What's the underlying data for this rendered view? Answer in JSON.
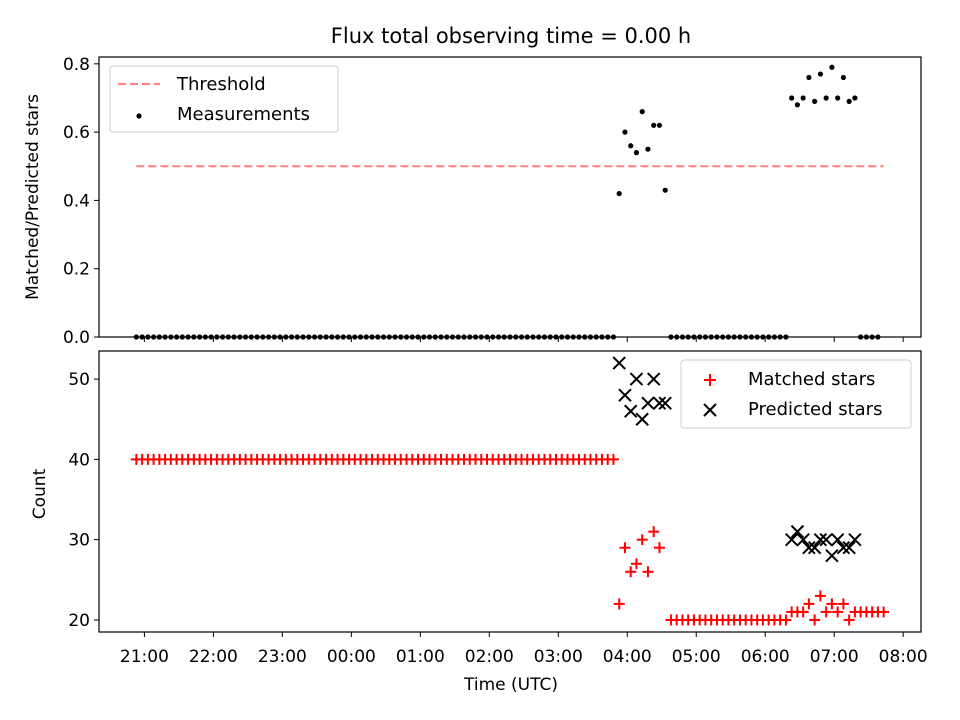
{
  "figure": {
    "title": "Flux total observing time = 0.00 h",
    "xlabel": "Time (UTC)",
    "xticks": [
      "21:00",
      "22:00",
      "23:00",
      "00:00",
      "01:00",
      "02:00",
      "03:00",
      "04:00",
      "05:00",
      "06:00",
      "07:00",
      "08:00"
    ]
  },
  "colors": {
    "threshold": "#ff7f7f",
    "measurement": "#000000",
    "matched": "#ff0000",
    "predicted": "#000000"
  },
  "chart_data": [
    {
      "type": "scatter",
      "ylabel": "Matched/Predicted stars",
      "ylim": [
        0,
        0.82
      ],
      "yticks": [
        "0.0",
        "0.2",
        "0.4",
        "0.6",
        "0.8"
      ],
      "legend": {
        "placement": "upper-left",
        "entries": [
          "Threshold",
          "Measurements"
        ]
      },
      "threshold": {
        "name": "Threshold",
        "value": 0.5,
        "x_start": "20:53",
        "x_end": "07:43"
      },
      "series": [
        {
          "name": "Measurements",
          "marker": "dot",
          "zero_runs": [
            {
              "start": "20:53",
              "end": "03:48",
              "step_min": 5
            },
            {
              "start": "04:38",
              "end": "06:18",
              "step_min": 5
            },
            {
              "start": "07:23",
              "end": "07:38",
              "step_min": 5
            }
          ],
          "points": [
            [
              "03:53",
              0.42
            ],
            [
              "03:58",
              0.6
            ],
            [
              "04:03",
              0.56
            ],
            [
              "04:08",
              0.54
            ],
            [
              "04:13",
              0.66
            ],
            [
              "04:18",
              0.55
            ],
            [
              "04:23",
              0.62
            ],
            [
              "04:28",
              0.62
            ],
            [
              "04:33",
              0.43
            ],
            [
              "06:23",
              0.7
            ],
            [
              "06:28",
              0.68
            ],
            [
              "06:33",
              0.7
            ],
            [
              "06:38",
              0.76
            ],
            [
              "06:43",
              0.69
            ],
            [
              "06:48",
              0.77
            ],
            [
              "06:53",
              0.7
            ],
            [
              "06:58",
              0.79
            ],
            [
              "07:03",
              0.7
            ],
            [
              "07:08",
              0.76
            ],
            [
              "07:13",
              0.69
            ],
            [
              "07:18",
              0.7
            ]
          ]
        }
      ]
    },
    {
      "type": "scatter",
      "ylabel": "Count",
      "ylim": [
        18.5,
        53.5
      ],
      "yticks": [
        "20",
        "30",
        "40",
        "50"
      ],
      "legend": {
        "placement": "upper-right",
        "entries": [
          "Matched stars",
          "Predicted stars"
        ]
      },
      "series": [
        {
          "name": "Matched stars",
          "marker": "plus",
          "constant_runs": [
            {
              "start": "20:53",
              "end": "03:48",
              "step_min": 5,
              "value": 40
            },
            {
              "start": "04:38",
              "end": "06:18",
              "step_min": 5,
              "value": 20
            },
            {
              "start": "07:23",
              "end": "07:43",
              "step_min": 5,
              "value": 21
            }
          ],
          "points": [
            [
              "03:53",
              22
            ],
            [
              "03:58",
              29
            ],
            [
              "04:03",
              26
            ],
            [
              "04:08",
              27
            ],
            [
              "04:13",
              30
            ],
            [
              "04:18",
              26
            ],
            [
              "04:23",
              31
            ],
            [
              "04:28",
              29
            ],
            [
              "06:23",
              21
            ],
            [
              "06:28",
              21
            ],
            [
              "06:33",
              21
            ],
            [
              "06:38",
              22
            ],
            [
              "06:43",
              20
            ],
            [
              "06:48",
              23
            ],
            [
              "06:53",
              21
            ],
            [
              "06:58",
              22
            ],
            [
              "07:03",
              21
            ],
            [
              "07:08",
              22
            ],
            [
              "07:13",
              20
            ],
            [
              "07:18",
              21
            ]
          ]
        },
        {
          "name": "Predicted stars",
          "marker": "x",
          "points": [
            [
              "03:53",
              52
            ],
            [
              "03:58",
              48
            ],
            [
              "04:03",
              46
            ],
            [
              "04:08",
              50
            ],
            [
              "04:13",
              45
            ],
            [
              "04:18",
              47
            ],
            [
              "04:23",
              50
            ],
            [
              "04:28",
              47
            ],
            [
              "04:33",
              47
            ],
            [
              "06:23",
              30
            ],
            [
              "06:28",
              31
            ],
            [
              "06:33",
              30
            ],
            [
              "06:38",
              29
            ],
            [
              "06:43",
              29
            ],
            [
              "06:48",
              30
            ],
            [
              "06:53",
              30
            ],
            [
              "06:58",
              28
            ],
            [
              "07:03",
              30
            ],
            [
              "07:08",
              29
            ],
            [
              "07:13",
              29
            ],
            [
              "07:18",
              30
            ]
          ]
        }
      ]
    }
  ]
}
